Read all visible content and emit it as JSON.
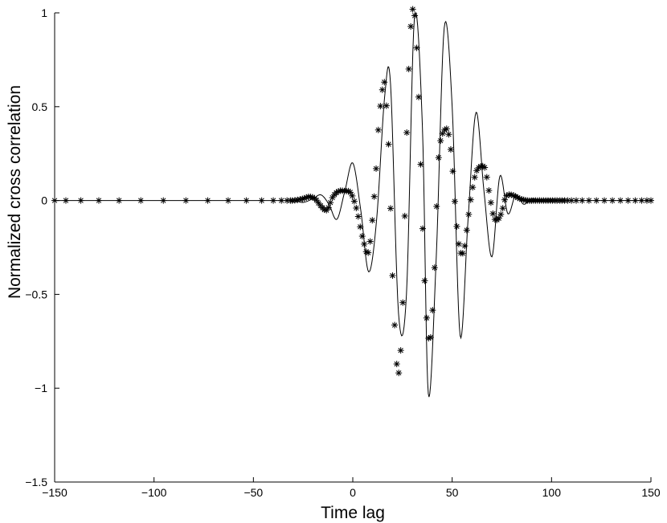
{
  "chart_data": {
    "type": "line",
    "title": "",
    "xlabel": "Time lag",
    "ylabel": "Normalized cross correlation",
    "xlim": [
      -150,
      150
    ],
    "ylim": [
      -1.5,
      1
    ],
    "xticks": [
      -150,
      -100,
      -50,
      0,
      50,
      100,
      150
    ],
    "xtick_labels": [
      "−150",
      "−100",
      "−50",
      "0",
      "50",
      "100",
      "150"
    ],
    "yticks": [
      -1.5,
      -1,
      -0.5,
      0,
      0.5,
      1
    ],
    "ytick_labels": [
      "−1.5",
      "−1",
      "−0.5",
      "0",
      "0.5",
      "1"
    ],
    "grid": false,
    "legend": "none",
    "series": [
      {
        "style": "solid-line",
        "color": "#000000",
        "x": [
          -150,
          -40,
          -30,
          -25,
          -20,
          -16,
          -12,
          -8,
          -4,
          0,
          4,
          8,
          12,
          16,
          19,
          23,
          27,
          31,
          35,
          38,
          42,
          46,
          50,
          54,
          58,
          62,
          66,
          70,
          74,
          78,
          82,
          86,
          90,
          95,
          100,
          150
        ],
        "y": [
          0,
          0,
          0,
          -0.01,
          0.01,
          0.03,
          -0.02,
          -0.1,
          0.05,
          0.2,
          -0.05,
          -0.38,
          -0.1,
          0.55,
          0.62,
          -0.6,
          -0.5,
          0.97,
          0.4,
          -1.03,
          -0.3,
          0.92,
          0.5,
          -0.72,
          -0.1,
          0.47,
          0.05,
          -0.3,
          0.13,
          -0.07,
          0.03,
          -0.02,
          0.01,
          0,
          0,
          0
        ]
      },
      {
        "style": "asterisk-markers",
        "color": "#000000",
        "x": [
          -150,
          -40,
          -35,
          -30,
          -25,
          -22,
          -19,
          -16,
          -13,
          -10,
          -7,
          -4,
          -1,
          2,
          5,
          8,
          11,
          13,
          15,
          16,
          18,
          20,
          22,
          23,
          25,
          27,
          29,
          31,
          33,
          35,
          37,
          39,
          41,
          43,
          45,
          47,
          48,
          50,
          52,
          54,
          56,
          58,
          60,
          62,
          64,
          66,
          67,
          69,
          71,
          73,
          75,
          77,
          80,
          84,
          88,
          92,
          96,
          100,
          110,
          150
        ],
        "y": [
          0,
          0,
          0,
          0,
          0.01,
          0.02,
          0.01,
          -0.03,
          -0.05,
          0.02,
          0.05,
          0.05,
          0.04,
          -0.05,
          -0.2,
          -0.27,
          0.05,
          0.4,
          0.6,
          0.62,
          0.3,
          -0.4,
          -0.85,
          -0.93,
          -0.6,
          0.3,
          0.9,
          1,
          0.6,
          -0.1,
          -0.6,
          -0.74,
          -0.4,
          0.2,
          0.35,
          0.38,
          0.37,
          0.2,
          -0.1,
          -0.27,
          -0.26,
          -0.1,
          0.05,
          0.15,
          0.18,
          0.18,
          0.15,
          0.02,
          -0.09,
          -0.1,
          -0.06,
          0.02,
          0.03,
          0.01,
          0,
          0,
          0,
          0,
          0,
          0
        ]
      }
    ]
  }
}
